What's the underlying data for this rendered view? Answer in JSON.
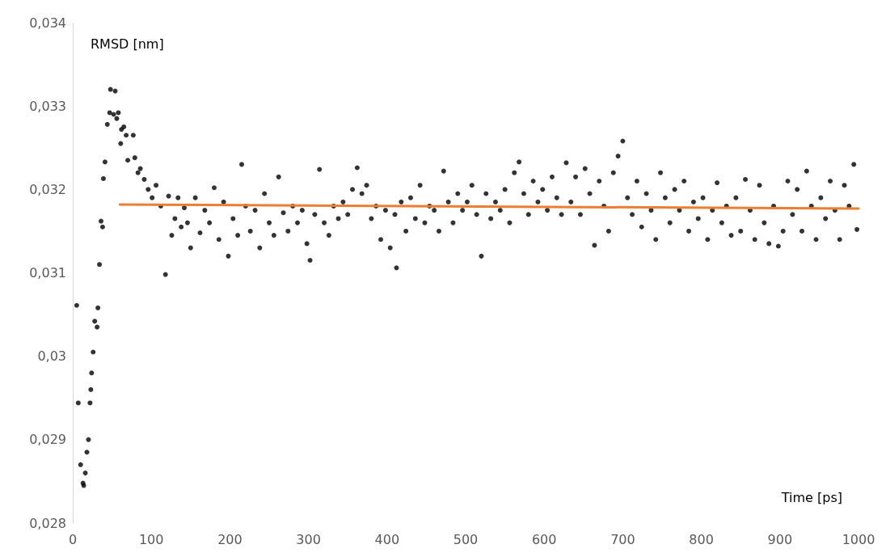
{
  "chart_data": {
    "type": "scatter",
    "xlabel": "Time [ps]",
    "ylabel": "RMSD [nm]",
    "xlim": [
      0,
      1000
    ],
    "xticks": [
      0,
      100,
      200,
      300,
      400,
      500,
      600,
      700,
      800,
      900,
      1000
    ],
    "ylim": [
      0.028,
      0.034
    ],
    "yticks": [
      {
        "value": 0.028,
        "label": "0,028"
      },
      {
        "value": 0.029,
        "label": "0,029"
      },
      {
        "value": 0.03,
        "label": "0,03"
      },
      {
        "value": 0.031,
        "label": "0,031"
      },
      {
        "value": 0.032,
        "label": "0,032"
      },
      {
        "value": 0.033,
        "label": "0,033"
      },
      {
        "value": 0.034,
        "label": "0,034"
      }
    ],
    "grid": false,
    "marker": "circle",
    "series": [
      {
        "color": "#000000",
        "x": [
          5,
          7,
          10,
          13,
          14,
          16,
          18,
          20,
          22,
          23,
          24,
          26,
          28,
          31,
          32,
          34,
          36,
          38,
          39,
          41,
          44,
          47,
          48,
          52,
          54,
          56,
          58,
          61,
          62,
          65,
          68,
          70,
          77,
          79,
          83,
          86,
          91,
          96,
          101,
          106,
          112,
          118,
          122,
          126,
          130,
          134,
          138,
          142,
          146,
          150,
          156,
          162,
          168,
          174,
          180,
          186,
          192,
          198,
          204,
          210,
          215,
          220,
          226,
          232,
          238,
          244,
          250,
          256,
          262,
          268,
          274,
          280,
          286,
          292,
          298,
          302,
          308,
          314,
          320,
          326,
          332,
          338,
          344,
          350,
          356,
          362,
          368,
          374,
          380,
          386,
          392,
          398,
          404,
          410,
          412,
          418,
          424,
          430,
          436,
          442,
          448,
          454,
          460,
          466,
          472,
          478,
          484,
          490,
          496,
          502,
          508,
          514,
          520,
          526,
          532,
          538,
          544,
          550,
          556,
          562,
          568,
          574,
          580,
          586,
          592,
          598,
          604,
          610,
          616,
          622,
          628,
          634,
          640,
          646,
          652,
          658,
          664,
          670,
          676,
          682,
          688,
          694,
          700,
          706,
          712,
          718,
          724,
          730,
          736,
          742,
          748,
          754,
          760,
          766,
          772,
          778,
          784,
          790,
          796,
          802,
          808,
          814,
          820,
          826,
          832,
          838,
          844,
          850,
          856,
          862,
          868,
          874,
          880,
          886,
          892,
          898,
          904,
          910,
          916,
          922,
          928,
          934,
          940,
          946,
          952,
          958,
          964,
          970,
          976,
          982,
          988,
          994,
          998
        ],
        "values": [
          0.03061,
          0.02944,
          0.0287,
          0.02848,
          0.02845,
          0.0286,
          0.02885,
          0.029,
          0.02944,
          0.0296,
          0.0298,
          0.03005,
          0.03042,
          0.03035,
          0.03058,
          0.0311,
          0.03162,
          0.03155,
          0.03213,
          0.03233,
          0.03278,
          0.03292,
          0.0332,
          0.0329,
          0.03318,
          0.03285,
          0.03292,
          0.03255,
          0.03272,
          0.03275,
          0.03265,
          0.03235,
          0.03265,
          0.03238,
          0.0322,
          0.03225,
          0.03212,
          0.032,
          0.0319,
          0.03205,
          0.0318,
          0.03098,
          0.03192,
          0.03145,
          0.03165,
          0.0319,
          0.03155,
          0.03178,
          0.0316,
          0.0313,
          0.0319,
          0.03148,
          0.03175,
          0.0316,
          0.03202,
          0.0314,
          0.03185,
          0.0312,
          0.03165,
          0.03145,
          0.0323,
          0.0318,
          0.0315,
          0.03175,
          0.0313,
          0.03195,
          0.0316,
          0.03145,
          0.03215,
          0.03172,
          0.0315,
          0.0318,
          0.0316,
          0.03175,
          0.03135,
          0.03115,
          0.0317,
          0.03224,
          0.0316,
          0.03145,
          0.0318,
          0.03165,
          0.03185,
          0.0317,
          0.032,
          0.03226,
          0.03195,
          0.03205,
          0.03165,
          0.0318,
          0.0314,
          0.03175,
          0.0313,
          0.0317,
          0.03106,
          0.03185,
          0.0315,
          0.0319,
          0.03165,
          0.03205,
          0.0316,
          0.0318,
          0.03175,
          0.0315,
          0.03222,
          0.03185,
          0.0316,
          0.03195,
          0.03175,
          0.03185,
          0.03205,
          0.0317,
          0.0312,
          0.03195,
          0.03165,
          0.03185,
          0.03175,
          0.032,
          0.0316,
          0.0322,
          0.03233,
          0.03195,
          0.0317,
          0.0321,
          0.03185,
          0.032,
          0.03175,
          0.03215,
          0.0319,
          0.0317,
          0.03232,
          0.03185,
          0.03215,
          0.0317,
          0.03225,
          0.03195,
          0.03133,
          0.0321,
          0.0318,
          0.0315,
          0.0322,
          0.0324,
          0.03258,
          0.0319,
          0.0317,
          0.0321,
          0.03155,
          0.03195,
          0.03175,
          0.0314,
          0.0322,
          0.0319,
          0.0316,
          0.032,
          0.03175,
          0.0321,
          0.0315,
          0.03185,
          0.03165,
          0.0319,
          0.0314,
          0.03175,
          0.03208,
          0.0316,
          0.0318,
          0.03145,
          0.0319,
          0.0315,
          0.03212,
          0.03175,
          0.0314,
          0.03205,
          0.0316,
          0.03135,
          0.0318,
          0.03132,
          0.0315,
          0.0321,
          0.0317,
          0.032,
          0.0315,
          0.03222,
          0.0318,
          0.0314,
          0.0319,
          0.03165,
          0.0321,
          0.03175,
          0.0314,
          0.03205,
          0.0318,
          0.0323,
          0.03152
        ]
      },
      {
        "type": "line",
        "color": "#ed7d31",
        "marker": "none",
        "line_style": "solid",
        "x": [
          60,
          1000
        ],
        "values": [
          0.03182,
          0.03177
        ]
      }
    ]
  }
}
